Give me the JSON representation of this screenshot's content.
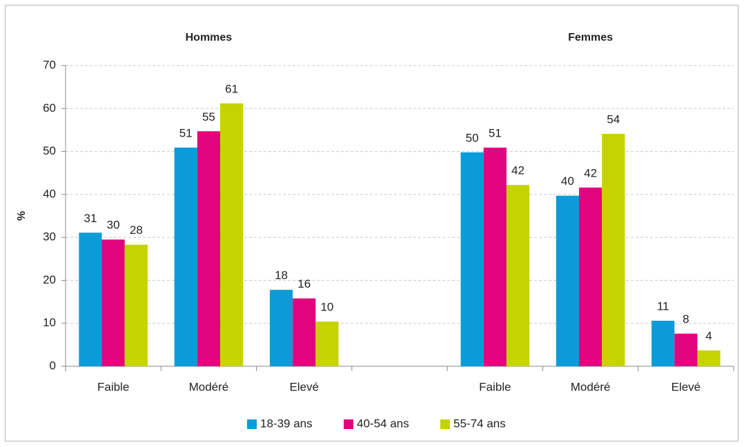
{
  "chart_data": {
    "type": "bar",
    "y_label": "%",
    "group_labels": [
      "Hommes",
      "Femmes"
    ],
    "categories": [
      "Faible",
      "Modéré",
      "Elevé",
      null,
      "Faible",
      "Modéré",
      "Elevé"
    ],
    "series": [
      {
        "name": "18-39 ans",
        "color": "#0b9bd9",
        "values": [
          31.1,
          50.9,
          17.8,
          null,
          49.8,
          39.7,
          10.6
        ],
        "value_labels": [
          "31",
          "51",
          "18",
          null,
          "50",
          "40",
          "11"
        ]
      },
      {
        "name": "40-54 ans",
        "color": "#e2047f",
        "values": [
          29.5,
          54.7,
          15.8,
          null,
          50.9,
          41.6,
          7.6
        ],
        "value_labels": [
          "30",
          "55",
          "16",
          null,
          "51",
          "42",
          "8"
        ]
      },
      {
        "name": "55-74 ans",
        "color": "#c5d300",
        "values": [
          28.3,
          61.2,
          10.4,
          null,
          42.2,
          54.1,
          3.7
        ],
        "value_labels": [
          "28",
          "61",
          "10",
          null,
          "42",
          "54",
          "4"
        ]
      }
    ],
    "ylim": [
      0,
      70
    ],
    "yticks": [
      0,
      10,
      20,
      30,
      40,
      50,
      60,
      70
    ],
    "grid": true,
    "legend": "bottom"
  }
}
